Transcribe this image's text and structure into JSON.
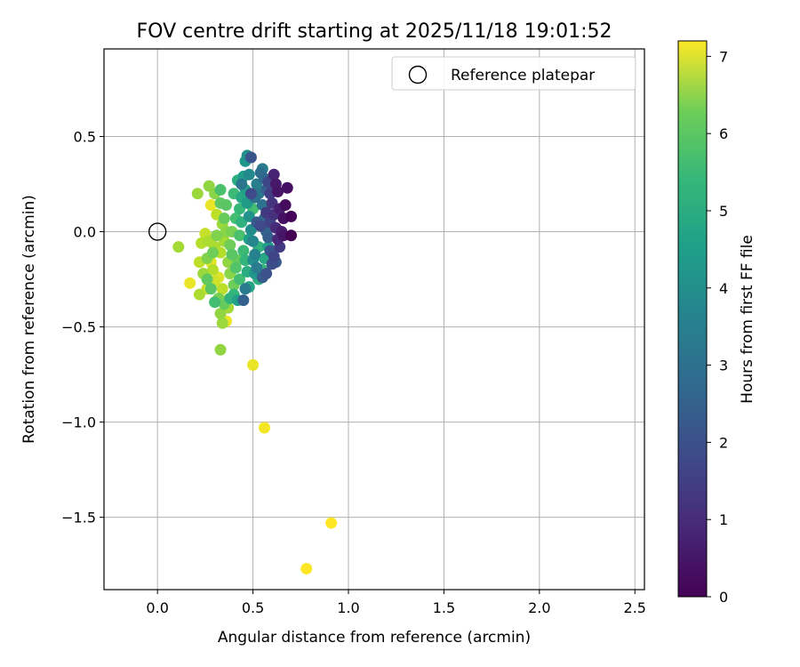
{
  "chart_data": {
    "type": "scatter",
    "title": "FOV centre drift starting at 2025/11/18 19:01:52",
    "xlabel": "Angular distance from reference (arcmin)",
    "ylabel": "Rotation from reference (arcmin)",
    "xlim": [
      -0.28,
      2.55
    ],
    "ylim": [
      -1.88,
      0.96
    ],
    "xticks": [
      0.0,
      0.5,
      1.0,
      1.5,
      2.0,
      2.5
    ],
    "xtick_labels": [
      "0.0",
      "0.5",
      "1.0",
      "1.5",
      "2.0",
      "2.5"
    ],
    "yticks": [
      0.5,
      0.0,
      -0.5,
      -1.0,
      -1.5
    ],
    "ytick_labels": [
      "0.5",
      "0.0",
      "−0.5",
      "−1.0",
      "−1.5"
    ],
    "grid": true,
    "legend": {
      "position": "top-right",
      "entries": [
        "Reference platepar"
      ]
    },
    "reference_point": {
      "x": 0.0,
      "y": 0.0
    },
    "colorbar": {
      "label": "Hours from first FF file",
      "min": 0,
      "max": 7.2,
      "ticks": [
        0,
        1,
        2,
        3,
        4,
        5,
        6,
        7
      ],
      "tick_labels": [
        "0",
        "1",
        "2",
        "3",
        "4",
        "5",
        "6",
        "7"
      ],
      "colormap": "viridis"
    },
    "points": [
      [
        0.91,
        -1.53,
        7.2
      ],
      [
        0.78,
        -1.77,
        7.2
      ],
      [
        0.56,
        -1.03,
        7.1
      ],
      [
        0.5,
        -0.7,
        7.0
      ],
      [
        0.36,
        -0.47,
        7.0
      ],
      [
        0.17,
        -0.27,
        7.0
      ],
      [
        0.28,
        0.14,
        7.0
      ],
      [
        0.28,
        -0.16,
        6.9
      ],
      [
        0.33,
        -0.62,
        6.0
      ],
      [
        0.11,
        -0.08,
        6.2
      ],
      [
        0.21,
        0.2,
        6.1
      ],
      [
        0.27,
        0.24,
        6.0
      ],
      [
        0.3,
        0.2,
        5.9
      ],
      [
        0.22,
        -0.16,
        6.5
      ],
      [
        0.25,
        -0.01,
        6.6
      ],
      [
        0.23,
        -0.06,
        6.4
      ],
      [
        0.22,
        -0.33,
        6.3
      ],
      [
        0.26,
        -0.3,
        6.6
      ],
      [
        0.3,
        -0.26,
        6.7
      ],
      [
        0.32,
        -0.24,
        6.8
      ],
      [
        0.34,
        -0.3,
        6.5
      ],
      [
        0.36,
        -0.36,
        6.6
      ],
      [
        0.37,
        -0.4,
        6.2
      ],
      [
        0.33,
        -0.43,
        6.0
      ],
      [
        0.34,
        -0.48,
        6.1
      ],
      [
        0.26,
        -0.14,
        5.8
      ],
      [
        0.3,
        -0.08,
        6.3
      ],
      [
        0.33,
        -0.11,
        6.4
      ],
      [
        0.35,
        -0.05,
        6.2
      ],
      [
        0.31,
        0.09,
        6.5
      ],
      [
        0.34,
        0.04,
        6.1
      ],
      [
        0.37,
        -0.16,
        6.0
      ],
      [
        0.38,
        -0.22,
        5.9
      ],
      [
        0.4,
        -0.28,
        5.6
      ],
      [
        0.29,
        -0.2,
        6.4
      ],
      [
        0.27,
        -0.05,
        6.3
      ],
      [
        0.24,
        -0.22,
        6.1
      ],
      [
        0.32,
        -0.35,
        5.7
      ],
      [
        0.35,
        -0.38,
        5.5
      ],
      [
        0.3,
        -0.37,
        5.0
      ],
      [
        0.28,
        -0.3,
        5.3
      ],
      [
        0.26,
        -0.25,
        5.4
      ],
      [
        0.29,
        -0.11,
        5.6
      ],
      [
        0.31,
        -0.02,
        5.8
      ],
      [
        0.33,
        0.15,
        5.4
      ],
      [
        0.33,
        0.22,
        5.1
      ],
      [
        0.35,
        0.07,
        5.5
      ],
      [
        0.36,
        0.0,
        5.9
      ],
      [
        0.38,
        -0.07,
        5.6
      ],
      [
        0.39,
        -0.12,
        5.3
      ],
      [
        0.41,
        -0.19,
        5.2
      ],
      [
        0.43,
        -0.25,
        5.0
      ],
      [
        0.4,
        -0.33,
        4.8
      ],
      [
        0.38,
        -0.35,
        4.6
      ],
      [
        0.42,
        -0.36,
        4.1
      ],
      [
        0.45,
        -0.36,
        2.2
      ],
      [
        0.41,
        0.07,
        5.0
      ],
      [
        0.42,
        0.27,
        4.5
      ],
      [
        0.43,
        0.12,
        4.8
      ],
      [
        0.44,
        0.05,
        4.6
      ],
      [
        0.43,
        -0.02,
        5.1
      ],
      [
        0.45,
        -0.1,
        4.9
      ],
      [
        0.46,
        -0.15,
        4.7
      ],
      [
        0.47,
        -0.21,
        4.4
      ],
      [
        0.48,
        -0.29,
        4.2
      ],
      [
        0.45,
        0.29,
        4.0
      ],
      [
        0.46,
        0.37,
        3.8
      ],
      [
        0.47,
        0.4,
        3.6
      ],
      [
        0.49,
        0.39,
        1.9
      ],
      [
        0.44,
        0.18,
        4.3
      ],
      [
        0.46,
        0.22,
        4.1
      ],
      [
        0.47,
        0.15,
        3.9
      ],
      [
        0.48,
        0.08,
        3.7
      ],
      [
        0.49,
        0.01,
        3.5
      ],
      [
        0.5,
        -0.05,
        3.3
      ],
      [
        0.51,
        -0.12,
        3.2
      ],
      [
        0.52,
        -0.19,
        3.0
      ],
      [
        0.53,
        -0.25,
        4.5
      ],
      [
        0.55,
        -0.2,
        4.8
      ],
      [
        0.56,
        -0.14,
        4.3
      ],
      [
        0.58,
        -0.08,
        4.0
      ],
      [
        0.5,
        0.12,
        5.0
      ],
      [
        0.52,
        0.25,
        3.1
      ],
      [
        0.53,
        0.2,
        2.9
      ],
      [
        0.54,
        0.31,
        2.6
      ],
      [
        0.55,
        0.33,
        3.0
      ],
      [
        0.56,
        0.28,
        2.4
      ],
      [
        0.57,
        0.22,
        2.2
      ],
      [
        0.55,
        0.14,
        2.7
      ],
      [
        0.56,
        0.07,
        2.5
      ],
      [
        0.57,
        0.0,
        2.3
      ],
      [
        0.58,
        -0.03,
        2.1
      ],
      [
        0.59,
        -0.1,
        1.9
      ],
      [
        0.6,
        -0.17,
        1.7
      ],
      [
        0.57,
        -0.22,
        1.8
      ],
      [
        0.55,
        -0.24,
        2.1
      ],
      [
        0.58,
        0.26,
        1.5
      ],
      [
        0.59,
        0.2,
        1.3
      ],
      [
        0.6,
        0.15,
        1.1
      ],
      [
        0.61,
        0.09,
        1.0
      ],
      [
        0.62,
        0.02,
        0.9
      ],
      [
        0.63,
        -0.04,
        0.8
      ],
      [
        0.64,
        -0.08,
        1.2
      ],
      [
        0.65,
        0.0,
        0.6
      ],
      [
        0.63,
        0.21,
        0.4
      ],
      [
        0.62,
        0.25,
        0.5
      ],
      [
        0.66,
        0.07,
        0.3
      ],
      [
        0.67,
        0.14,
        0.2
      ],
      [
        0.68,
        0.23,
        0.3
      ],
      [
        0.7,
        0.08,
        0.1
      ],
      [
        0.7,
        -0.02,
        0.0
      ],
      [
        0.66,
        -0.02,
        0.4
      ],
      [
        0.64,
        0.12,
        0.6
      ],
      [
        0.61,
        0.3,
        0.7
      ],
      [
        0.53,
        -0.08,
        4.6
      ],
      [
        0.51,
        -0.22,
        3.8
      ],
      [
        0.48,
        -0.04,
        4.0
      ],
      [
        0.42,
        -0.15,
        5.5
      ],
      [
        0.39,
        0.0,
        5.7
      ],
      [
        0.36,
        0.14,
        5.3
      ],
      [
        0.4,
        0.2,
        4.9
      ],
      [
        0.44,
        0.25,
        2.8
      ],
      [
        0.48,
        0.3,
        3.4
      ],
      [
        0.51,
        0.18,
        2.6
      ],
      [
        0.54,
        0.03,
        1.6
      ],
      [
        0.59,
        0.05,
        1.4
      ],
      [
        0.61,
        -0.13,
        1.5
      ],
      [
        0.62,
        -0.16,
        2.0
      ],
      [
        0.5,
        -0.15,
        3.6
      ],
      [
        0.46,
        -0.3,
        3.0
      ],
      [
        0.52,
        0.05,
        2.0
      ],
      [
        0.49,
        0.2,
        1.6
      ],
      [
        0.57,
        0.1,
        1.2
      ]
    ]
  }
}
